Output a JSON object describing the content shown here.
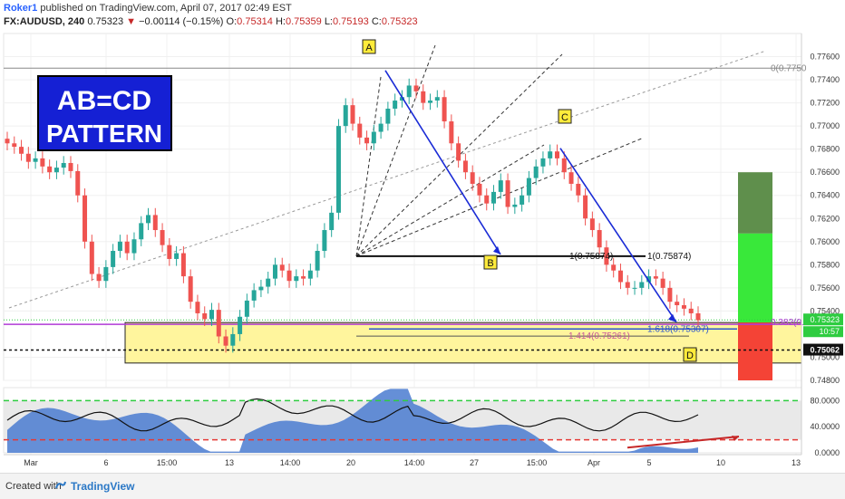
{
  "header": {
    "user": "Roker1",
    "published_text": " published on TradingView.com, April 07, 2017 02:49 EST",
    "symbol": "FX:AUDUSD, 240",
    "last": "0.75323",
    "change": "−0.00114 (−0.15%)",
    "ohlc": [
      {
        "label": "O:",
        "value": "0.75314"
      },
      {
        "label": "H:",
        "value": "0.75359"
      },
      {
        "label": "L:",
        "value": "0.75193"
      },
      {
        "label": "C:",
        "value": "0.75323"
      }
    ]
  },
  "annotation": {
    "line1": "AB=CD",
    "line2": "PATTERN"
  },
  "points": [
    "A",
    "B",
    "C",
    "D"
  ],
  "fib_labels": {
    "top_right": "0(0.7750",
    "b_level_left": "1(0.75874)",
    "b_level_right": "1(0.75874)",
    "ext_1618": "1.618(0.75307)",
    "ext_1414": "1.414(0.75261)",
    "right_382": "0.382(0."
  },
  "price_axis": {
    "ticks": [
      "0.77600",
      "0.77400",
      "0.77200",
      "0.77000",
      "0.76800",
      "0.76600",
      "0.76400",
      "0.76200",
      "0.76000",
      "0.75800",
      "0.75600",
      "0.75400",
      "0.75000",
      "0.74800"
    ],
    "current_price": "0.75323",
    "countdown": "10:57",
    "dotted_level": "0.75062"
  },
  "rsi_axis": {
    "ticks": [
      "80.0000",
      "40.0000",
      "0.0000"
    ]
  },
  "time_axis": [
    "Mar",
    "6",
    "15:00",
    "13",
    "14:00",
    "20",
    "14:00",
    "27",
    "15:00",
    "Apr",
    "5",
    "10",
    "13"
  ],
  "footer": {
    "created": "Created with",
    "brand": "TradingView"
  },
  "colors": {
    "up": "#26a69a",
    "down": "#ef5350",
    "blue_line": "#1a2bd6",
    "zone": "#fff59d",
    "target_green": "#39e83a",
    "target_dark": "#5f8f4c",
    "stop_red": "#f44336",
    "rsi_area": "#4a7bd0"
  },
  "chart_data": {
    "type": "candlestick",
    "symbol": "FX:AUDUSD",
    "timeframe": "240",
    "ylim": [
      0.748,
      0.778
    ],
    "close_path": [
      0.7685,
      0.7682,
      0.7676,
      0.7669,
      0.7672,
      0.7665,
      0.766,
      0.7664,
      0.7668,
      0.7661,
      0.764,
      0.76,
      0.7572,
      0.7566,
      0.7578,
      0.7592,
      0.76,
      0.759,
      0.7602,
      0.7616,
      0.7623,
      0.761,
      0.7597,
      0.7585,
      0.759,
      0.757,
      0.7548,
      0.7538,
      0.7533,
      0.7541,
      0.7518,
      0.751,
      0.752,
      0.7535,
      0.7549,
      0.7558,
      0.7561,
      0.7568,
      0.758,
      0.7575,
      0.7566,
      0.757,
      0.7568,
      0.7575,
      0.7592,
      0.761,
      0.7625,
      0.77,
      0.7718,
      0.7702,
      0.769,
      0.7685,
      0.7695,
      0.7702,
      0.7715,
      0.7722,
      0.7725,
      0.7735,
      0.773,
      0.772,
      0.7722,
      0.7725,
      0.7704,
      0.7685,
      0.767,
      0.766,
      0.765,
      0.764,
      0.7633,
      0.7643,
      0.7653,
      0.763,
      0.7632,
      0.764,
      0.7655,
      0.7665,
      0.7672,
      0.7678,
      0.7672,
      0.766,
      0.765,
      0.764,
      0.762,
      0.761,
      0.7595,
      0.758,
      0.7575,
      0.7565,
      0.756,
      0.756,
      0.7565,
      0.757,
      0.7568,
      0.756,
      0.7548,
      0.7545,
      0.7542,
      0.7538,
      0.7532
    ],
    "rsi": {
      "levels": [
        80,
        20
      ],
      "ylim": [
        0,
        100
      ]
    },
    "pattern": {
      "A": 0.7748,
      "B": 0.75874,
      "C": 0.768,
      "D": 0.7505,
      "fib_levels": [
        {
          "label": "0",
          "value": 0.775
        },
        {
          "label": "1",
          "value": 0.75874
        },
        {
          "label": "1.618",
          "value": 0.75307
        },
        {
          "label": "1.414",
          "value": 0.75261
        },
        {
          "label": "0.382",
          "value": null
        }
      ],
      "zone": [
        0.7495,
        0.753
      ],
      "target_box": [
        0.753,
        0.766
      ],
      "stop_box": [
        0.748,
        0.753
      ]
    }
  }
}
